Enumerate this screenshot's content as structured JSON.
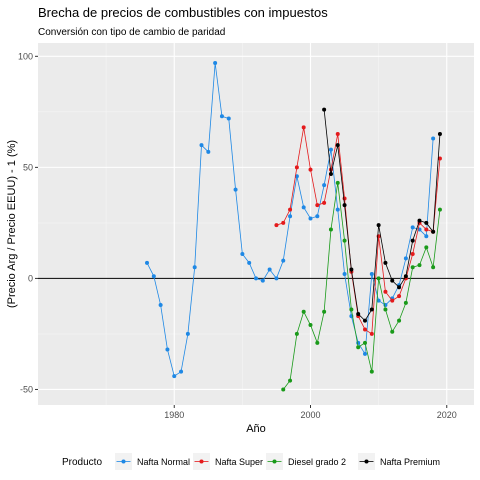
{
  "chart_data": {
    "type": "line",
    "title": "Brecha de precios de combustibles con impuestos",
    "subtitle": "Conversión con tipo de cambio de paridad",
    "xlabel": "Año",
    "ylabel": "(Precio Arg / Precio EEUU) - 1  (%)",
    "xlim": [
      1960,
      2024
    ],
    "ylim": [
      -57,
      106
    ],
    "x_ticks": [
      1980,
      2000,
      2020
    ],
    "y_ticks": [
      -50,
      0,
      50,
      100
    ],
    "reference_line": 0,
    "grid": true,
    "legend_title": "Producto",
    "legend_position": "bottom",
    "series": [
      {
        "name": "Nafta Normal",
        "color": "#1E88E5",
        "points": [
          [
            1976,
            7
          ],
          [
            1977,
            1
          ],
          [
            1978,
            -12
          ],
          [
            1979,
            -32
          ],
          [
            1980,
            -44
          ],
          [
            1981,
            -42
          ],
          [
            1982,
            -25
          ],
          [
            1983,
            5
          ],
          [
            1984,
            60
          ],
          [
            1985,
            57
          ],
          [
            1986,
            97
          ],
          [
            1987,
            73
          ],
          [
            1988,
            72
          ],
          [
            1989,
            40
          ],
          [
            1990,
            11
          ],
          [
            1991,
            7
          ],
          [
            1992,
            0
          ],
          [
            1993,
            -1
          ],
          [
            1994,
            4
          ],
          [
            1995,
            0
          ],
          [
            1996,
            8
          ],
          [
            1997,
            28
          ],
          [
            1998,
            46
          ],
          [
            1999,
            32
          ],
          [
            2000,
            27
          ],
          [
            2001,
            28
          ],
          [
            2002,
            42
          ],
          [
            2003,
            58
          ],
          [
            2004,
            31
          ],
          [
            2005,
            2
          ],
          [
            2006,
            -17
          ],
          [
            2007,
            -29
          ],
          [
            2008,
            -34
          ],
          [
            2009,
            2
          ],
          [
            2010,
            -10
          ],
          [
            2011,
            -12
          ],
          [
            2012,
            -9
          ],
          [
            2013,
            -3
          ],
          [
            2014,
            9
          ],
          [
            2015,
            23
          ],
          [
            2016,
            22
          ],
          [
            2017,
            19
          ],
          [
            2018,
            63
          ]
        ]
      },
      {
        "name": "Nafta Super",
        "color": "#E41A1C",
        "points": [
          [
            1995,
            24
          ],
          [
            1996,
            25
          ],
          [
            1997,
            31
          ],
          [
            1998,
            50
          ],
          [
            1999,
            68
          ],
          [
            2000,
            49
          ],
          [
            2001,
            33
          ],
          [
            2002,
            34
          ],
          [
            2003,
            49
          ],
          [
            2004,
            65
          ],
          [
            2005,
            36
          ],
          [
            2006,
            3
          ],
          [
            2007,
            -17
          ],
          [
            2008,
            -23
          ],
          [
            2009,
            -25
          ],
          [
            2010,
            19
          ],
          [
            2011,
            -6
          ],
          [
            2012,
            -10
          ],
          [
            2013,
            -8
          ],
          [
            2014,
            0
          ],
          [
            2015,
            11
          ],
          [
            2016,
            25
          ],
          [
            2017,
            22
          ],
          [
            2018,
            21
          ],
          [
            2019,
            54
          ]
        ]
      },
      {
        "name": "Diesel grado 2",
        "color": "#1A9A1A",
        "points": [
          [
            1996,
            -50
          ],
          [
            1997,
            -46
          ],
          [
            1998,
            -25
          ],
          [
            1999,
            -15
          ],
          [
            2000,
            -21
          ],
          [
            2001,
            -29
          ],
          [
            2002,
            -15
          ],
          [
            2003,
            22
          ],
          [
            2004,
            43
          ],
          [
            2005,
            17
          ],
          [
            2006,
            -14
          ],
          [
            2007,
            -31
          ],
          [
            2008,
            -29
          ],
          [
            2009,
            -42
          ],
          [
            2010,
            0
          ],
          [
            2011,
            -14
          ],
          [
            2012,
            -24
          ],
          [
            2013,
            -19
          ],
          [
            2014,
            -11
          ],
          [
            2015,
            5
          ],
          [
            2016,
            6
          ],
          [
            2017,
            14
          ],
          [
            2018,
            5
          ],
          [
            2019,
            31
          ]
        ]
      },
      {
        "name": "Nafta Premium",
        "color": "#000000",
        "points": [
          [
            2002,
            76
          ],
          [
            2003,
            47
          ],
          [
            2004,
            60
          ],
          [
            2005,
            33
          ],
          [
            2006,
            4
          ],
          [
            2007,
            -16
          ],
          [
            2008,
            -19
          ],
          [
            2009,
            -14
          ],
          [
            2010,
            24
          ],
          [
            2011,
            7
          ],
          [
            2012,
            -1
          ],
          [
            2013,
            -4
          ],
          [
            2014,
            1
          ],
          [
            2015,
            17
          ],
          [
            2016,
            26
          ],
          [
            2017,
            25
          ],
          [
            2018,
            21
          ],
          [
            2019,
            65
          ]
        ]
      }
    ]
  }
}
